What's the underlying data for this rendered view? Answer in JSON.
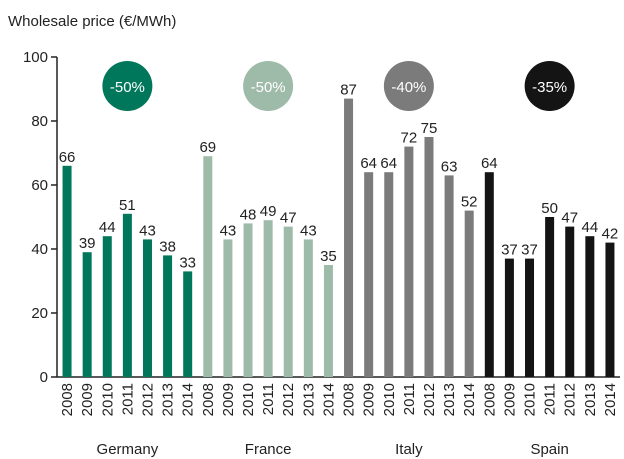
{
  "chart_data": {
    "type": "bar",
    "y_label": "Wholesale price (€/MWh)",
    "categories": [
      "2008",
      "2009",
      "2010",
      "2011",
      "2012",
      "2013",
      "2014"
    ],
    "series": [
      {
        "name": "Germany",
        "color": "#00775a",
        "badge": "-50%",
        "values": [
          66,
          39,
          44,
          51,
          43,
          38,
          33
        ]
      },
      {
        "name": "France",
        "color": "#9ebaa9",
        "badge": "-50%",
        "values": [
          69,
          43,
          48,
          49,
          47,
          43,
          35
        ]
      },
      {
        "name": "Italy",
        "color": "#7b7b7b",
        "badge": "-40%",
        "values": [
          87,
          64,
          64,
          72,
          75,
          63,
          52
        ]
      },
      {
        "name": "Spain",
        "color": "#141414",
        "badge": "-35%",
        "values": [
          64,
          37,
          37,
          50,
          47,
          44,
          42
        ]
      }
    ],
    "ylim": [
      0,
      100
    ],
    "yticks": [
      0,
      20,
      40,
      60,
      80,
      100
    ]
  }
}
